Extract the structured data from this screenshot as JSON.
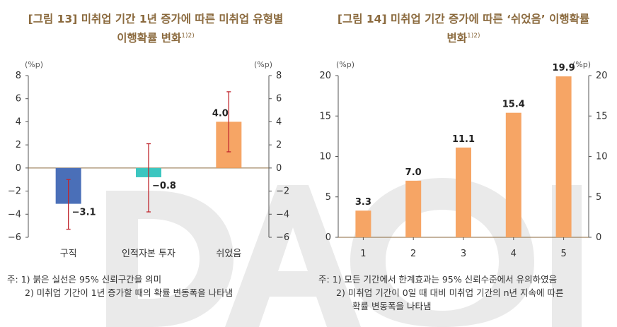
{
  "watermark": "DAON",
  "charts": [
    {
      "title": "[그림 13] 미취업 기간 1년 증가에 따른 미취업 유형별",
      "title_line2": "이행확률 변화",
      "title_sup": "1)2)",
      "unit_left": "(%p)",
      "unit_right": "(%p)",
      "notes_prefix": "주:",
      "notes": [
        "1) 붉은 실선은 95% 신뢰구간을 의미",
        "2) 미취업 기간이 1년 증가할 때의 확률 변동폭을 나타냄"
      ]
    },
    {
      "title": "[그림 14] 미취업 기간 증가에 따른 ‘쉬었음’ 이행확률",
      "title_line2": "변화",
      "title_sup": "1)2)",
      "unit_left": "(%p)",
      "unit_right": "(%p)",
      "notes_prefix": "주:",
      "notes": [
        "1) 모든 기간에서 한계효과는 95% 신뢰수준에서 유의하였음",
        "2) 미취업 기간이 0일 때 대비 미취업 기간의 n년 지속에 따른",
        "확률 변동폭을 나타냄"
      ]
    }
  ],
  "chart_data": [
    {
      "type": "bar",
      "categories": [
        "구직",
        "인적자본 투자",
        "쉬었음"
      ],
      "values": [
        -3.1,
        -0.8,
        4.0
      ],
      "value_labels": [
        "−3.1",
        "−0.8",
        "4.0"
      ],
      "ci_low": [
        -5.3,
        -3.8,
        1.4
      ],
      "ci_high": [
        -1.0,
        2.1,
        6.6
      ],
      "colors": [
        "#4a6fb8",
        "#3cc6c0",
        "#f6a565"
      ],
      "ci_color": "#c0262d",
      "ylim": [
        -6,
        8
      ],
      "yticks": [
        -6,
        -4,
        -2,
        0,
        2,
        4,
        6,
        8
      ],
      "ytick_labels": [
        "−6",
        "−4",
        "−2",
        "0",
        "2",
        "4",
        "6",
        "8"
      ],
      "grid": false
    },
    {
      "type": "bar",
      "categories": [
        "1",
        "2",
        "3",
        "4",
        "5"
      ],
      "values": [
        3.3,
        7.0,
        11.1,
        15.4,
        19.9
      ],
      "value_labels": [
        "3.3",
        "7.0",
        "11.1",
        "15.4",
        "19.9"
      ],
      "color": "#f6a565",
      "ylim": [
        0,
        20
      ],
      "yticks": [
        0,
        5,
        10,
        15,
        20
      ],
      "ytick_labels": [
        "0",
        "5",
        "10",
        "15",
        "20"
      ],
      "grid": false
    }
  ]
}
